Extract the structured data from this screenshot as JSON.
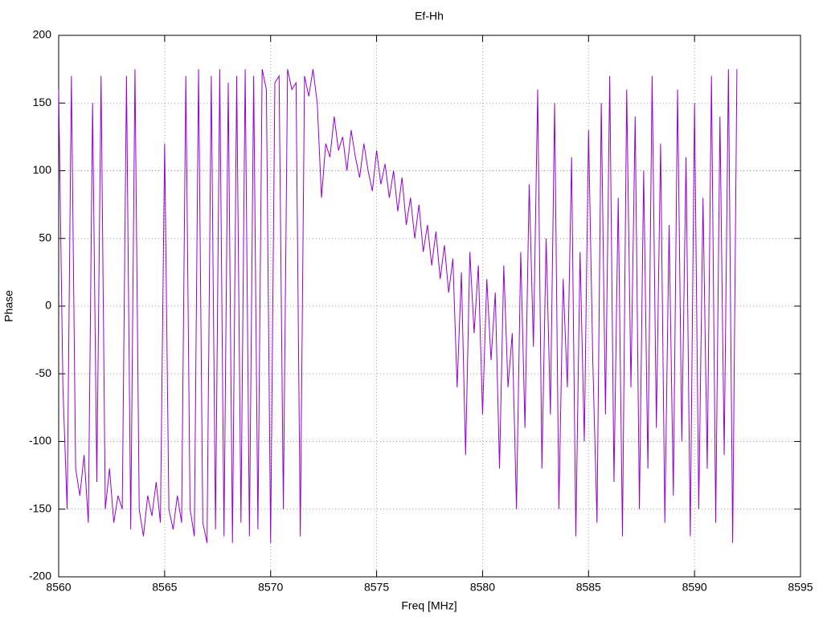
{
  "chart_data": {
    "type": "line",
    "title": "Ef-Hh",
    "xlabel": "Freq [MHz]",
    "ylabel": "Phase",
    "xlim": [
      8560,
      8595
    ],
    "xticks": [
      8560,
      8565,
      8570,
      8575,
      8580,
      8585,
      8590,
      8595
    ],
    "ylim": [
      -200,
      200
    ],
    "yticks": [
      -200,
      -150,
      -100,
      -50,
      0,
      50,
      100,
      150,
      200
    ],
    "grid": true,
    "x": [
      8560.0,
      8560.2,
      8560.4,
      8560.6,
      8560.8,
      8561.0,
      8561.2,
      8561.4,
      8561.6,
      8561.8,
      8562.0,
      8562.2,
      8562.4,
      8562.6,
      8562.8,
      8563.0,
      8563.2,
      8563.4,
      8563.6,
      8563.8,
      8564.0,
      8564.2,
      8564.4,
      8564.6,
      8564.8,
      8565.0,
      8565.2,
      8565.4,
      8565.6,
      8565.8,
      8566.0,
      8566.2,
      8566.4,
      8566.6,
      8566.8,
      8567.0,
      8567.2,
      8567.4,
      8567.6,
      8567.8,
      8568.0,
      8568.2,
      8568.4,
      8568.6,
      8568.8,
      8569.0,
      8569.2,
      8569.4,
      8569.6,
      8569.8,
      8570.0,
      8570.2,
      8570.4,
      8570.6,
      8570.8,
      8571.0,
      8571.2,
      8571.4,
      8571.6,
      8571.8,
      8572.0,
      8572.2,
      8572.4,
      8572.6,
      8572.8,
      8573.0,
      8573.2,
      8573.4,
      8573.6,
      8573.8,
      8574.0,
      8574.2,
      8574.4,
      8574.6,
      8574.8,
      8575.0,
      8575.2,
      8575.4,
      8575.6,
      8575.8,
      8576.0,
      8576.2,
      8576.4,
      8576.6,
      8576.8,
      8577.0,
      8577.2,
      8577.4,
      8577.6,
      8577.8,
      8578.0,
      8578.2,
      8578.4,
      8578.6,
      8578.8,
      8579.0,
      8579.2,
      8579.4,
      8579.6,
      8579.8,
      8580.0,
      8580.2,
      8580.4,
      8580.6,
      8580.8,
      8581.0,
      8581.2,
      8581.4,
      8581.6,
      8581.8,
      8582.0,
      8582.2,
      8582.4,
      8582.6,
      8582.8,
      8583.0,
      8583.2,
      8583.4,
      8583.6,
      8583.8,
      8584.0,
      8584.2,
      8584.4,
      8584.6,
      8584.8,
      8585.0,
      8585.2,
      8585.4,
      8585.6,
      8585.8,
      8586.0,
      8586.2,
      8586.4,
      8586.6,
      8586.8,
      8587.0,
      8587.2,
      8587.4,
      8587.6,
      8587.8,
      8588.0,
      8588.2,
      8588.4,
      8588.6,
      8588.8,
      8589.0,
      8589.2,
      8589.4,
      8589.6,
      8589.8,
      8590.0,
      8590.2,
      8590.4,
      8590.6,
      8590.8,
      8591.0,
      8591.2,
      8591.4,
      8591.6,
      8591.8,
      8592.0
    ],
    "series": [
      {
        "color": "#9400d3",
        "values": [
          160,
          -60,
          -150,
          170,
          -120,
          -140,
          -110,
          -160,
          150,
          -130,
          170,
          -150,
          -120,
          -160,
          -140,
          -150,
          170,
          -165,
          175,
          -150,
          -170,
          -140,
          -155,
          -130,
          -160,
          120,
          -150,
          -165,
          -140,
          -160,
          170,
          -150,
          -170,
          175,
          -160,
          -175,
          170,
          -165,
          175,
          -170,
          165,
          -175,
          170,
          -160,
          175,
          -170,
          170,
          -165,
          175,
          160,
          -175,
          165,
          170,
          -150,
          175,
          160,
          165,
          -170,
          170,
          155,
          175,
          150,
          80,
          120,
          110,
          140,
          115,
          125,
          100,
          130,
          110,
          95,
          120,
          100,
          85,
          115,
          90,
          105,
          80,
          100,
          70,
          95,
          60,
          80,
          50,
          75,
          40,
          60,
          30,
          55,
          20,
          45,
          10,
          35,
          -60,
          25,
          -110,
          40,
          -20,
          30,
          -80,
          20,
          -40,
          10,
          -120,
          30,
          -60,
          -20,
          -150,
          40,
          -90,
          90,
          -30,
          160,
          -120,
          50,
          -80,
          150,
          -150,
          20,
          -60,
          110,
          -170,
          40,
          -100,
          130,
          -40,
          -160,
          150,
          -80,
          170,
          -130,
          80,
          -170,
          160,
          -60,
          140,
          -150,
          100,
          -120,
          170,
          -90,
          120,
          -160,
          60,
          -140,
          160,
          -100,
          110,
          -170,
          150,
          -150,
          80,
          -120,
          170,
          -160,
          140,
          -110,
          175,
          -175,
          175
        ]
      }
    ]
  }
}
